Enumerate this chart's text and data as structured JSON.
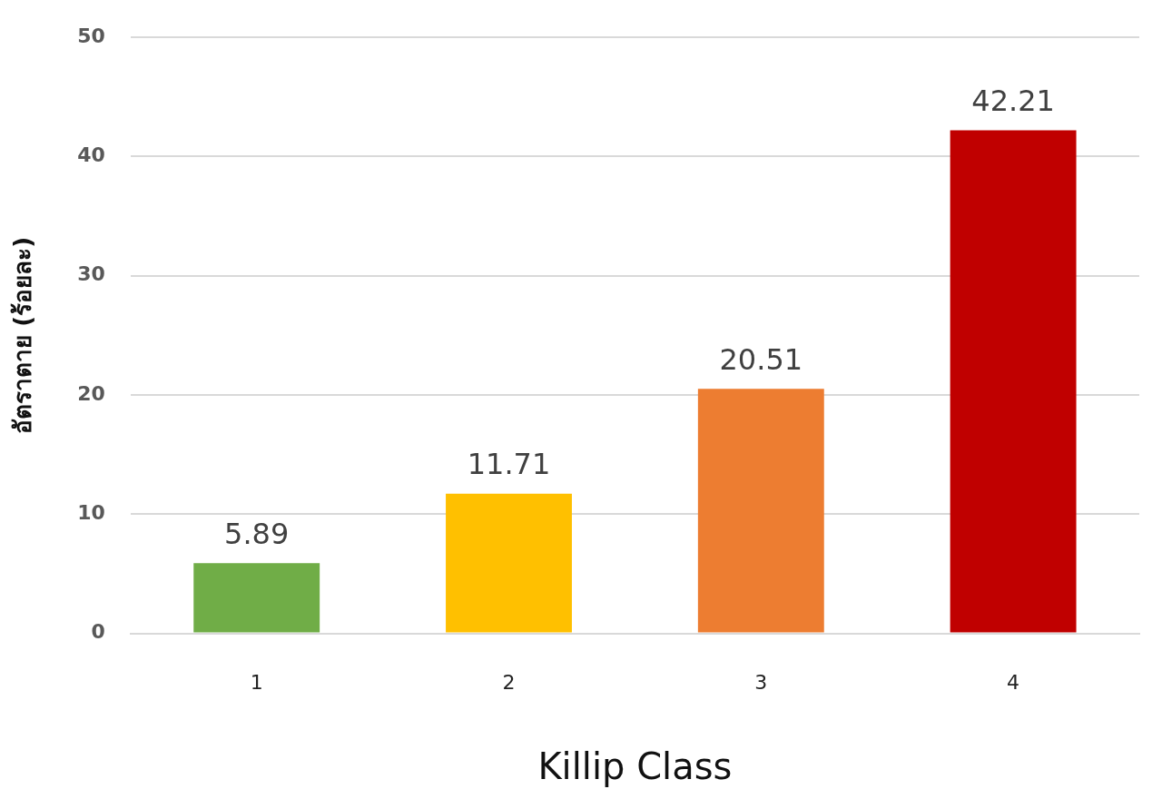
{
  "chart_data": {
    "type": "bar",
    "xlabel": "Killip Class",
    "ylabel": "อัตราตาย (ร้อยละ)",
    "categories": [
      "1",
      "2",
      "3",
      "4"
    ],
    "values": [
      5.89,
      11.71,
      20.51,
      42.21
    ],
    "colors": [
      "#70ad47",
      "#ffc000",
      "#ed7d31",
      "#c00000"
    ],
    "ylim": [
      0,
      50
    ],
    "yticks": [
      0,
      10,
      20,
      30,
      40,
      50
    ],
    "grid": "y",
    "data_labels": true
  }
}
